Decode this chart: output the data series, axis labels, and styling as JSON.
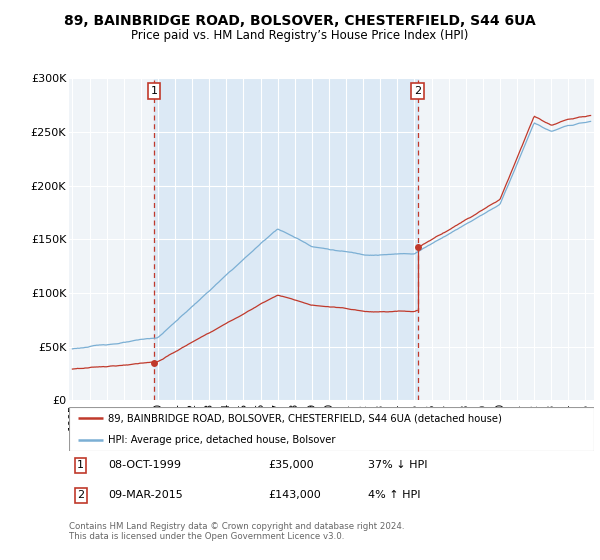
{
  "title": "89, BAINBRIDGE ROAD, BOLSOVER, CHESTERFIELD, S44 6UA",
  "subtitle": "Price paid vs. HM Land Registry’s House Price Index (HPI)",
  "ylim": [
    0,
    300000
  ],
  "yticks": [
    0,
    50000,
    100000,
    150000,
    200000,
    250000,
    300000
  ],
  "ytick_labels": [
    "£0",
    "£50K",
    "£100K",
    "£150K",
    "£200K",
    "£250K",
    "£300K"
  ],
  "hpi_color": "#7bafd4",
  "price_color": "#c0392b",
  "shade_color": "#dce9f5",
  "marker1_year": 1999.78,
  "marker1_price": 35000,
  "marker2_year": 2015.18,
  "marker2_price": 143000,
  "legend_line1": "89, BAINBRIDGE ROAD, BOLSOVER, CHESTERFIELD, S44 6UA (detached house)",
  "legend_line2": "HPI: Average price, detached house, Bolsover",
  "table_row1": [
    "1",
    "08-OCT-1999",
    "£35,000",
    "37% ↓ HPI"
  ],
  "table_row2": [
    "2",
    "09-MAR-2015",
    "£143,000",
    "4% ↑ HPI"
  ],
  "footer": "Contains HM Land Registry data © Crown copyright and database right 2024.\nThis data is licensed under the Open Government Licence v3.0."
}
